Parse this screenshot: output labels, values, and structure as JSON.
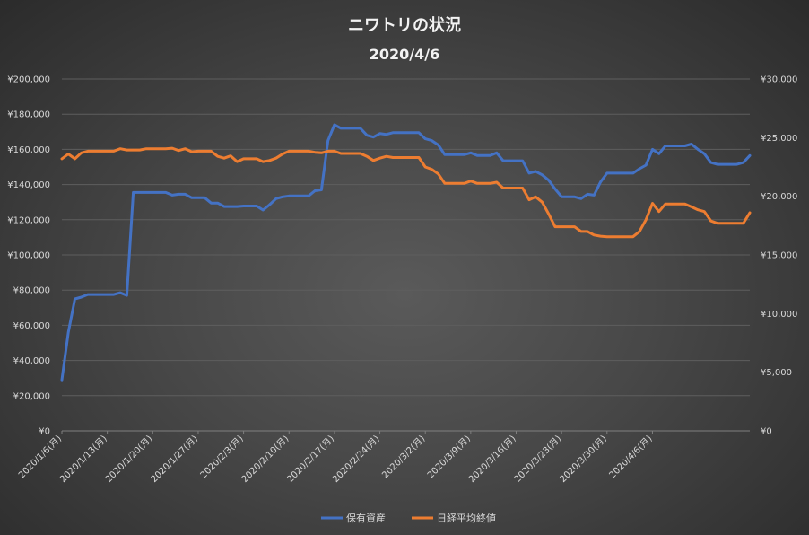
{
  "chart_data": {
    "type": "line",
    "title": "ニワトリの状況",
    "subtitle": "2020/4/6",
    "x_start": "2020-01-06",
    "y_left": {
      "min": 0,
      "max": 200000,
      "step": 20000,
      "ticks": [
        "¥0",
        "¥20,000",
        "¥40,000",
        "¥60,000",
        "¥80,000",
        "¥100,000",
        "¥120,000",
        "¥140,000",
        "¥160,000",
        "¥180,000",
        "¥200,000"
      ]
    },
    "y_right": {
      "min": 0,
      "max": 30000,
      "step": 5000,
      "ticks": [
        "¥0",
        "¥5,000",
        "¥10,000",
        "¥15,000",
        "¥20,000",
        "¥25,000",
        "¥30,000"
      ]
    },
    "x_ticks": [
      "2020/1/6(月)",
      "2020/1/13(月)",
      "2020/1/20(月)",
      "2020/1/27(月)",
      "2020/2/3(月)",
      "2020/2/10(月)",
      "2020/2/17(月)",
      "2020/2/24(月)",
      "2020/3/2(月)",
      "2020/3/9(月)",
      "2020/3/16(月)",
      "2020/3/23(月)",
      "2020/3/30(月)",
      "2020/4/6(月)"
    ],
    "grid": true,
    "legend_position": "bottom",
    "series": [
      {
        "name": "保有資産",
        "axis": "left",
        "color": "#4472c4",
        "points": [
          [
            0,
            29000
          ],
          [
            1,
            56000
          ],
          [
            2,
            75000
          ],
          [
            3,
            76000
          ],
          [
            4,
            77500
          ],
          [
            5,
            77500
          ],
          [
            6,
            77500
          ],
          [
            7,
            77500
          ],
          [
            8,
            77500
          ],
          [
            9,
            78500
          ],
          [
            10,
            77000
          ],
          [
            11,
            135500
          ],
          [
            12,
            135500
          ],
          [
            13,
            135500
          ],
          [
            14,
            135500
          ],
          [
            15,
            135500
          ],
          [
            16,
            135500
          ],
          [
            17,
            134000
          ],
          [
            18,
            134500
          ],
          [
            19,
            134500
          ],
          [
            20,
            132500
          ],
          [
            21,
            132500
          ],
          [
            22,
            132500
          ],
          [
            23,
            129500
          ],
          [
            24,
            129500
          ],
          [
            25,
            127500
          ],
          [
            26,
            127500
          ],
          [
            27,
            127500
          ],
          [
            28,
            127800
          ],
          [
            29,
            127800
          ],
          [
            30,
            127800
          ],
          [
            31,
            125500
          ],
          [
            32,
            128500
          ],
          [
            33,
            132000
          ],
          [
            34,
            133000
          ],
          [
            35,
            133500
          ],
          [
            36,
            133500
          ],
          [
            37,
            133500
          ],
          [
            38,
            133500
          ],
          [
            39,
            136500
          ],
          [
            40,
            137000
          ],
          [
            41,
            165000
          ],
          [
            42,
            174000
          ],
          [
            43,
            172000
          ],
          [
            44,
            172000
          ],
          [
            45,
            172000
          ],
          [
            46,
            172000
          ],
          [
            47,
            168000
          ],
          [
            48,
            167000
          ],
          [
            49,
            169000
          ],
          [
            50,
            168500
          ],
          [
            51,
            169500
          ],
          [
            52,
            169500
          ],
          [
            53,
            169500
          ],
          [
            54,
            169500
          ],
          [
            55,
            169500
          ],
          [
            56,
            166000
          ],
          [
            57,
            165000
          ],
          [
            58,
            162500
          ],
          [
            59,
            157000
          ],
          [
            60,
            157000
          ],
          [
            61,
            157000
          ],
          [
            62,
            157000
          ],
          [
            63,
            158000
          ],
          [
            64,
            156500
          ],
          [
            65,
            156500
          ],
          [
            66,
            156500
          ],
          [
            67,
            158000
          ],
          [
            68,
            153500
          ],
          [
            69,
            153500
          ],
          [
            70,
            153500
          ],
          [
            71,
            153500
          ],
          [
            72,
            146500
          ],
          [
            73,
            147500
          ],
          [
            74,
            145500
          ],
          [
            75,
            142500
          ],
          [
            76,
            137500
          ],
          [
            77,
            133000
          ],
          [
            78,
            133000
          ],
          [
            79,
            133000
          ],
          [
            80,
            132000
          ],
          [
            81,
            134500
          ],
          [
            82,
            134000
          ],
          [
            83,
            141500
          ],
          [
            84,
            146500
          ],
          [
            85,
            146500
          ],
          [
            86,
            146500
          ],
          [
            87,
            146500
          ],
          [
            88,
            146500
          ],
          [
            89,
            149000
          ],
          [
            90,
            151000
          ],
          [
            91,
            160000
          ],
          [
            92,
            157500
          ],
          [
            93,
            162000
          ],
          [
            94,
            162000
          ],
          [
            95,
            162000
          ],
          [
            96,
            162000
          ],
          [
            97,
            163000
          ],
          [
            98,
            160000
          ],
          [
            99,
            157500
          ],
          [
            100,
            152500
          ],
          [
            101,
            151500
          ],
          [
            102,
            151500
          ],
          [
            103,
            151500
          ],
          [
            104,
            151500
          ],
          [
            105,
            152500
          ],
          [
            106,
            156500
          ]
        ]
      },
      {
        "name": "日経平均終値",
        "axis": "right",
        "color": "#ed7d31",
        "points": [
          [
            0,
            23200
          ],
          [
            1,
            23600
          ],
          [
            2,
            23200
          ],
          [
            3,
            23700
          ],
          [
            4,
            23850
          ],
          [
            5,
            23850
          ],
          [
            6,
            23850
          ],
          [
            7,
            23850
          ],
          [
            8,
            23850
          ],
          [
            9,
            24050
          ],
          [
            10,
            23950
          ],
          [
            11,
            23950
          ],
          [
            12,
            23950
          ],
          [
            13,
            24050
          ],
          [
            14,
            24050
          ],
          [
            15,
            24050
          ],
          [
            16,
            24050
          ],
          [
            17,
            24100
          ],
          [
            18,
            23900
          ],
          [
            19,
            24050
          ],
          [
            20,
            23800
          ],
          [
            21,
            23850
          ],
          [
            22,
            23850
          ],
          [
            23,
            23850
          ],
          [
            24,
            23400
          ],
          [
            25,
            23250
          ],
          [
            26,
            23450
          ],
          [
            27,
            22950
          ],
          [
            28,
            23200
          ],
          [
            29,
            23200
          ],
          [
            30,
            23200
          ],
          [
            31,
            22950
          ],
          [
            32,
            23050
          ],
          [
            33,
            23250
          ],
          [
            34,
            23600
          ],
          [
            35,
            23850
          ],
          [
            36,
            23850
          ],
          [
            37,
            23850
          ],
          [
            38,
            23850
          ],
          [
            39,
            23750
          ],
          [
            40,
            23700
          ],
          [
            41,
            23850
          ],
          [
            42,
            23850
          ],
          [
            43,
            23650
          ],
          [
            44,
            23650
          ],
          [
            45,
            23650
          ],
          [
            46,
            23650
          ],
          [
            47,
            23400
          ],
          [
            48,
            23050
          ],
          [
            49,
            23250
          ],
          [
            50,
            23400
          ],
          [
            51,
            23300
          ],
          [
            52,
            23300
          ],
          [
            53,
            23300
          ],
          [
            54,
            23300
          ],
          [
            55,
            23300
          ],
          [
            56,
            22500
          ],
          [
            57,
            22300
          ],
          [
            58,
            21900
          ],
          [
            59,
            21100
          ],
          [
            60,
            21100
          ],
          [
            61,
            21100
          ],
          [
            62,
            21100
          ],
          [
            63,
            21300
          ],
          [
            64,
            21100
          ],
          [
            65,
            21100
          ],
          [
            66,
            21100
          ],
          [
            67,
            21200
          ],
          [
            68,
            20700
          ],
          [
            69,
            20700
          ],
          [
            70,
            20700
          ],
          [
            71,
            20700
          ],
          [
            72,
            19700
          ],
          [
            73,
            19950
          ],
          [
            74,
            19500
          ],
          [
            75,
            18500
          ],
          [
            76,
            17400
          ],
          [
            77,
            17400
          ],
          [
            78,
            17400
          ],
          [
            79,
            17400
          ],
          [
            80,
            17000
          ],
          [
            81,
            17000
          ],
          [
            82,
            16700
          ],
          [
            83,
            16600
          ],
          [
            84,
            16550
          ],
          [
            85,
            16550
          ],
          [
            86,
            16550
          ],
          [
            87,
            16550
          ],
          [
            88,
            16550
          ],
          [
            89,
            17000
          ],
          [
            90,
            18000
          ],
          [
            91,
            19400
          ],
          [
            92,
            18700
          ],
          [
            93,
            19350
          ],
          [
            94,
            19350
          ],
          [
            95,
            19350
          ],
          [
            96,
            19350
          ],
          [
            97,
            19100
          ],
          [
            98,
            18850
          ],
          [
            99,
            18700
          ],
          [
            100,
            17900
          ],
          [
            101,
            17700
          ],
          [
            102,
            17700
          ],
          [
            103,
            17700
          ],
          [
            104,
            17700
          ],
          [
            105,
            17700
          ],
          [
            106,
            18600
          ]
        ]
      }
    ]
  }
}
